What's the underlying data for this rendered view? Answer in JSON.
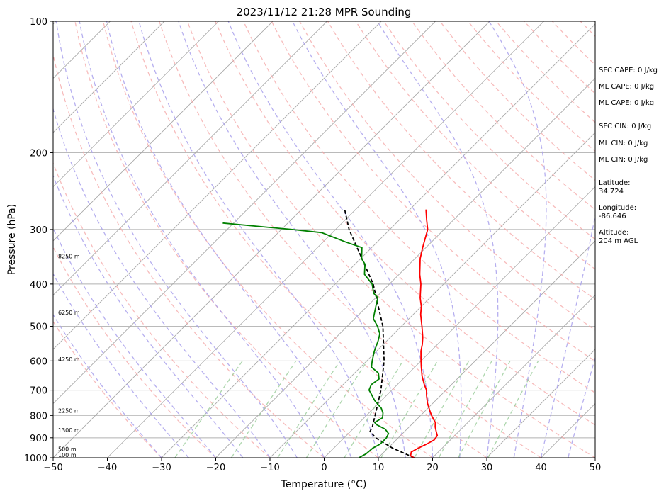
{
  "chart_data": {
    "type": "skew-t",
    "title": "2023/11/12 21:28 MPR Sounding",
    "xlabel": "Temperature (°C)",
    "ylabel": "Pressure (hPa)",
    "xlim": [
      -50,
      50
    ],
    "ylim": [
      1000,
      100
    ],
    "y_scale": "log",
    "x_ticks": [
      -50,
      -40,
      -30,
      -20,
      -10,
      0,
      10,
      20,
      30,
      40,
      50
    ],
    "x_tick_labels": [
      "−50",
      "−40",
      "−30",
      "−20",
      "−10",
      "0",
      "10",
      "20",
      "30",
      "40",
      "50"
    ],
    "y_ticks": [
      100,
      200,
      300,
      400,
      500,
      600,
      700,
      800,
      900,
      1000
    ],
    "y_tick_labels": [
      "100",
      "200",
      "300",
      "400",
      "500",
      "600",
      "700",
      "800",
      "900",
      "1000"
    ],
    "grid": true,
    "colors": {
      "temperature": "#ff0000",
      "dewpoint": "#008000",
      "parcel": "#000000",
      "dry_adiabats": "#f4a6a6",
      "moist_adiabats": "#a9a1ec",
      "mixing_ratio": "#99cc99",
      "isotherms": "#a0a0a0"
    },
    "temperature": {
      "p": [
        1000,
        990,
        970,
        950,
        930,
        910,
        890,
        870,
        850,
        830,
        800,
        780,
        750,
        720,
        700,
        680,
        650,
        620,
        600,
        570,
        550,
        530,
        500,
        470,
        450,
        430,
        400,
        380,
        350,
        330,
        300,
        285,
        270
      ],
      "t": [
        16.6,
        15.6,
        15.0,
        15.6,
        16.4,
        17.0,
        16.8,
        15.8,
        14.8,
        14.0,
        12.0,
        10.8,
        9.0,
        7.4,
        6.4,
        5.0,
        3.0,
        1.2,
        0.0,
        -1.8,
        -2.8,
        -4.0,
        -6.2,
        -8.6,
        -10.0,
        -11.8,
        -14.2,
        -16.2,
        -19.0,
        -20.6,
        -23.0,
        -25.0,
        -27.0
      ]
    },
    "dewpoint": {
      "p": [
        1000,
        980,
        950,
        930,
        900,
        880,
        860,
        840,
        830,
        810,
        790,
        770,
        740,
        710,
        700,
        680,
        660,
        640,
        620,
        600,
        570,
        540,
        520,
        500,
        480,
        450,
        430,
        420,
        400,
        380,
        360,
        350,
        330,
        320,
        305,
        300,
        295,
        290
      ],
      "t": [
        6.4,
        7.0,
        7.2,
        7.8,
        7.8,
        7.4,
        6.0,
        3.6,
        2.8,
        3.4,
        2.6,
        1.4,
        -1.2,
        -3.4,
        -4.2,
        -4.8,
        -4.4,
        -5.6,
        -8.0,
        -9.0,
        -10.4,
        -11.6,
        -12.6,
        -14.4,
        -16.6,
        -18.4,
        -19.6,
        -21.2,
        -23.2,
        -26.4,
        -28.2,
        -29.8,
        -31.8,
        -36.0,
        -42.0,
        -48.0,
        -55.0,
        -62.0
      ]
    },
    "parcel": {
      "p": [
        1000,
        950,
        900,
        870,
        850,
        800,
        700,
        600,
        500,
        400,
        300,
        270
      ],
      "t": [
        16.6,
        10.8,
        5.8,
        3.6,
        3.2,
        1.6,
        -2.0,
        -6.8,
        -13.4,
        -23.0,
        -37.5,
        -42.0
      ]
    },
    "height_labels": [
      {
        "p": 985,
        "label": "100 m"
      },
      {
        "p": 955,
        "label": "500 m"
      },
      {
        "p": 865,
        "label": "1300 m"
      },
      {
        "p": 780,
        "label": "2250 m"
      },
      {
        "p": 595,
        "label": "4250 m"
      },
      {
        "p": 465,
        "label": "6250 m"
      },
      {
        "p": 345,
        "label": "8250 m"
      }
    ],
    "side_info": [
      "SFC CAPE: 0 J/kg",
      "ML CAPE: 0 J/kg",
      "ML CAPE: 0 J/kg",
      "SFC CIN: 0 J/kg",
      "ML CIN: 0 J/kg",
      "ML CIN: 0 J/kg",
      "Latitude:\n34.724",
      "Longitude:\n-86.646",
      "Altitude:\n204 m AGL"
    ]
  }
}
